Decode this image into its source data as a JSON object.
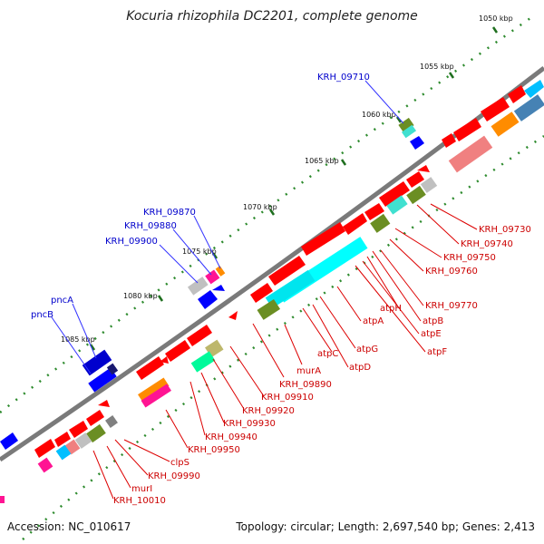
{
  "title": "Kocuria rhizophila DC2201, complete genome",
  "accession": "Accession: NC_010617",
  "topology": "Topology: circular; Length: 2,697,540 bp; Genes: 2,413",
  "colors": {
    "background": "#ffffff",
    "backbone": "#777777",
    "tick": "#2e8b2e",
    "gene_forward": "#ff0000",
    "label_blue": "#0000cc",
    "label_red": "#cc0000"
  },
  "kbp_ticks": [
    "1050 kbp",
    "1055 kbp",
    "1060 kbp",
    "1065 kbp",
    "1070 kbp",
    "1075 kbp",
    "1080 kbp",
    "1085 kbp"
  ],
  "labels_blue": [
    "KRH_09710",
    "KRH_09870",
    "KRH_09880",
    "KRH_09900",
    "pncA",
    "pncB"
  ],
  "labels_red": [
    "KRH_09730",
    "KRH_09740",
    "KRH_09750",
    "KRH_09760",
    "KRH_09770",
    "atpH",
    "atpB",
    "atpE",
    "atpF",
    "atpA",
    "atpG",
    "atpC",
    "atpD",
    "murA",
    "KRH_09890",
    "KRH_09910",
    "KRH_09920",
    "KRH_09930",
    "KRH_09940",
    "KRH_09950",
    "clpS",
    "KRH_09990",
    "murI",
    "KRH_10010"
  ]
}
